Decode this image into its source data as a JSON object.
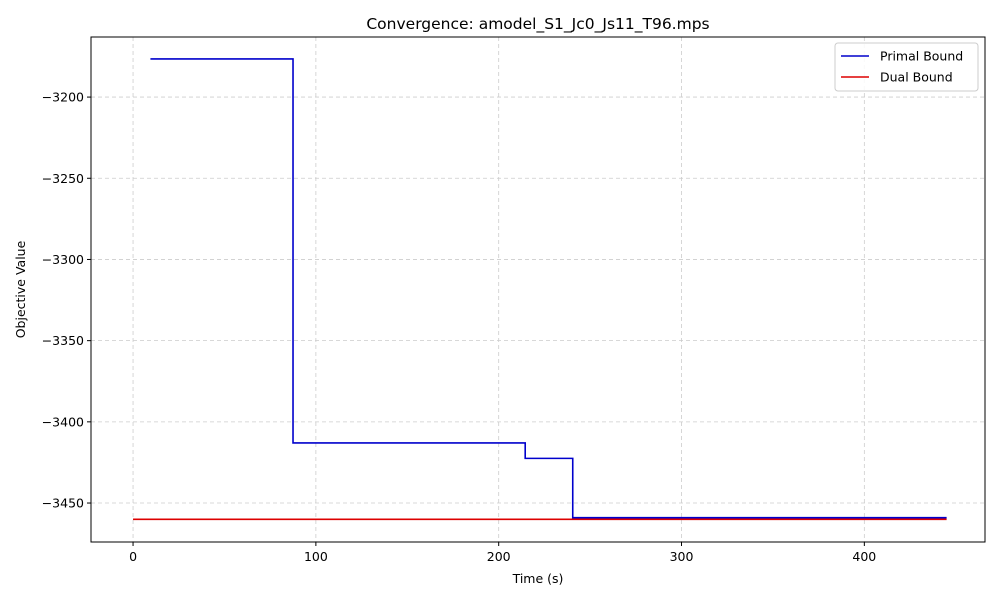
{
  "chart_data": {
    "type": "line",
    "title": "Convergence: amodel_S1_Jc0_Js11_T96.mps",
    "xlabel": "Time (s)",
    "ylabel": "Objective Value",
    "xlim": [
      -23,
      466
    ],
    "ylim": [
      -3474,
      -3163
    ],
    "xticks": [
      0,
      100,
      200,
      300,
      400
    ],
    "yticks": [
      -3200,
      -3250,
      -3300,
      -3350,
      -3400,
      -3450
    ],
    "grid": true,
    "legend_position": "top-right",
    "series": [
      {
        "name": "Primal Bound",
        "color": "#0000cc",
        "step": true,
        "points": [
          [
            9.5,
            -3176.5
          ],
          [
            87.5,
            -3176.5
          ],
          [
            87.5,
            -3413
          ],
          [
            214.5,
            -3413
          ],
          [
            214.5,
            -3422.5
          ],
          [
            240.5,
            -3422.5
          ],
          [
            240.5,
            -3459
          ],
          [
            445,
            -3459
          ]
        ]
      },
      {
        "name": "Dual Bound",
        "color": "#dd0000",
        "step": false,
        "points": [
          [
            0,
            -3460
          ],
          [
            445,
            -3460
          ]
        ]
      }
    ]
  }
}
